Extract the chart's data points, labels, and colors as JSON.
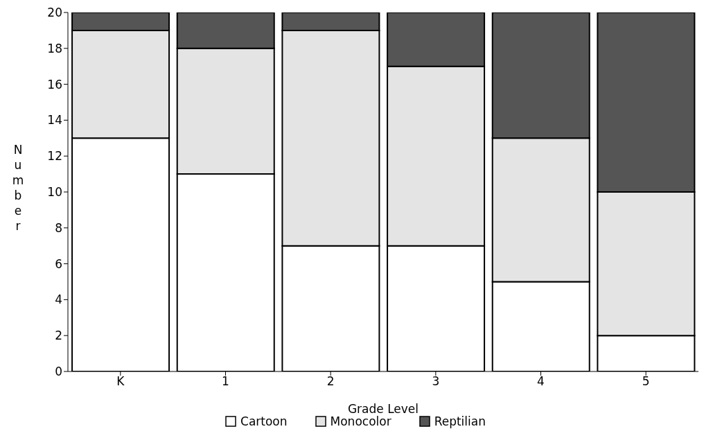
{
  "chart_data": {
    "type": "bar",
    "stacked": true,
    "xlabel": "Grade Level",
    "ylabel": "Number",
    "categories": [
      "K",
      "1",
      "2",
      "3",
      "4",
      "5"
    ],
    "series": [
      {
        "name": "Cartoon",
        "color": "#ffffff",
        "values": [
          13,
          11,
          7,
          7,
          5,
          2
        ]
      },
      {
        "name": "Monocolor",
        "color": "#e4e4e4",
        "values": [
          6,
          7,
          12,
          10,
          8,
          8
        ]
      },
      {
        "name": "Reptilian",
        "color": "#555555",
        "values": [
          1,
          2,
          1,
          3,
          7,
          10
        ]
      }
    ],
    "ylim": [
      0,
      20
    ],
    "yticks": [
      0,
      2,
      4,
      6,
      8,
      10,
      12,
      14,
      16,
      18,
      20
    ],
    "grid": false,
    "legend": "bottom"
  }
}
